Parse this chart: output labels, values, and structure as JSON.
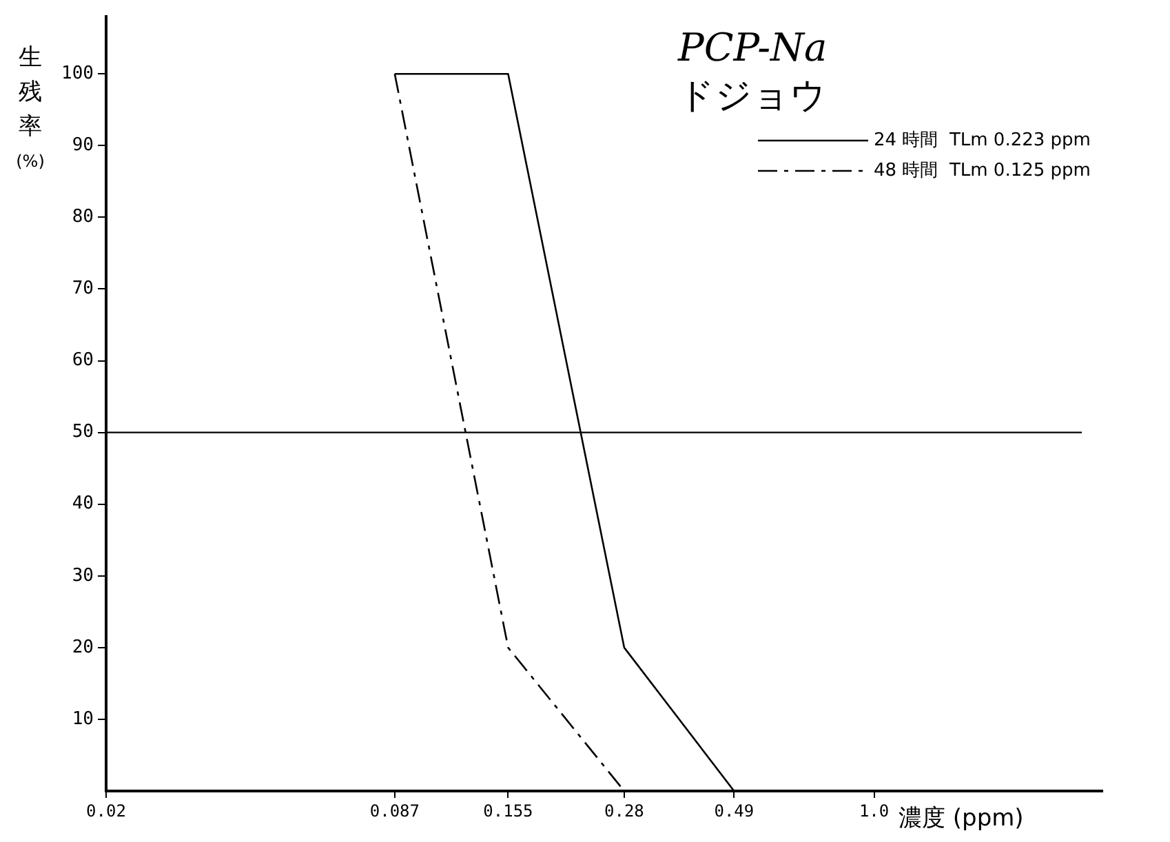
{
  "chart_data": {
    "type": "line",
    "title": "PCP-Na",
    "subtitle": "ドジョウ",
    "xlabel": "濃度 (ppm)",
    "ylabel": "生残率 (%)",
    "series": [
      {
        "name": "24 時間  TLm 0.223 ppm",
        "color": "#000000",
        "x": [
          0.087,
          0.155,
          0.28,
          0.49
        ],
        "values": [
          100,
          100,
          20,
          0
        ],
        "line_style": "solid"
      },
      {
        "name": "48 時間  TLm 0.125 ppm",
        "color": "#000000",
        "x": [
          0.087,
          0.155,
          0.28
        ],
        "values": [
          100,
          20,
          0
        ],
        "line_style": "dashed"
      }
    ],
    "log": "x",
    "xlim": [
      0.02,
      3.2
    ],
    "xticks": [
      0.02,
      0.087,
      0.155,
      0.28,
      0.49,
      {
        "value": 1,
        "label": "1.0"
      }
    ],
    "ylim": [
      0,
      108
    ],
    "yticks": [
      10,
      20,
      30,
      40,
      50,
      60,
      70,
      80,
      90,
      100
    ],
    "ref_lines": [
      {
        "axis": "y",
        "value": 50,
        "color": "#000000"
      }
    ],
    "grid": false,
    "legend": "top right",
    "marker": "none"
  }
}
